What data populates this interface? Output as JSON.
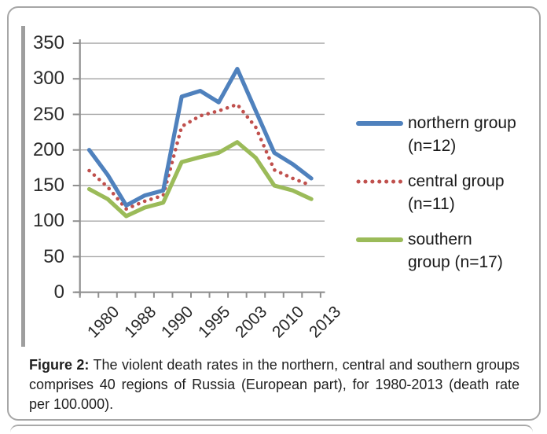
{
  "caption": {
    "label": "Figure 2:",
    "line1_rest": "The violent death rates in the northern, central and southern groups",
    "line2": "comprises 40 regions of Russia (European part), for 1980-2013 (death rate",
    "line3": "per 100.000)."
  },
  "chart_data": {
    "type": "line",
    "title": "",
    "xlabel": "",
    "ylabel": "",
    "ylim": [
      0,
      350
    ],
    "y_ticks": [
      350,
      300,
      250,
      200,
      150,
      100,
      50,
      0
    ],
    "x_tick_labels": [
      "1980",
      "1988",
      "1990",
      "1995",
      "2003",
      "2010",
      "2013"
    ],
    "x_label_positions": [
      0,
      2,
      4,
      6,
      8,
      10,
      12
    ],
    "n_points": 13,
    "grid": true,
    "legend_position": "right",
    "axis_color": "#8f8f8f",
    "grid_color": "#a8a8a8",
    "tick_label_color": "#262626",
    "draw_order": [
      1,
      2,
      0
    ],
    "series": [
      {
        "name": "northern group (n=12)",
        "color": "#4F81BD",
        "style": "solid",
        "values": [
          200,
          165,
          122,
          136,
          143,
          275,
          283,
          267,
          314,
          255,
          196,
          180,
          160
        ]
      },
      {
        "name": "central group (n=11)",
        "color": "#C0504D",
        "style": "dotted",
        "values": [
          171,
          148,
          117,
          128,
          136,
          233,
          248,
          255,
          264,
          232,
          172,
          160,
          150
        ]
      },
      {
        "name": "southern group (n=17)",
        "color": "#9BBB59",
        "style": "solid",
        "values": [
          145,
          131,
          107,
          119,
          126,
          183,
          190,
          196,
          211,
          189,
          150,
          143,
          131
        ]
      }
    ]
  }
}
